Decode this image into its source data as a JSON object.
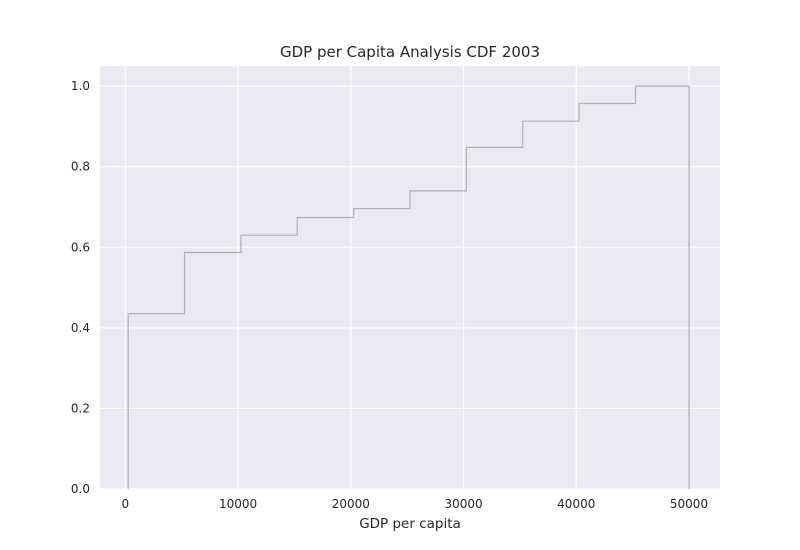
{
  "chart_data": {
    "type": "step",
    "title": "GDP per Capita Analysis CDF 2003",
    "xlabel": "GDP per capita",
    "ylabel": "",
    "xlim": [
      -2250,
      52750
    ],
    "ylim": [
      0,
      1.05
    ],
    "grid": true,
    "xticks": [
      0,
      10000,
      20000,
      30000,
      40000,
      50000
    ],
    "xtick_labels": [
      "0",
      "10000",
      "20000",
      "30000",
      "40000",
      "50000"
    ],
    "yticks": [
      0.0,
      0.2,
      0.4,
      0.6,
      0.8,
      1.0
    ],
    "ytick_labels": [
      "0.0",
      "0.2",
      "0.4",
      "0.6",
      "0.8",
      "1.0"
    ],
    "series": [
      {
        "color": "#b0b0b0",
        "x": [
          250,
          5250,
          10250,
          15250,
          20250,
          25250,
          30250,
          35250,
          40250,
          45250,
          50000
        ],
        "y": [
          0.435,
          0.587,
          0.63,
          0.674,
          0.696,
          0.74,
          0.848,
          0.913,
          0.957,
          1.0,
          1.0
        ]
      }
    ]
  },
  "colors": {
    "plot_background": "#eaeaf2",
    "grid": "#ffffff",
    "line": "#b0b0b0",
    "text": "#262626"
  }
}
